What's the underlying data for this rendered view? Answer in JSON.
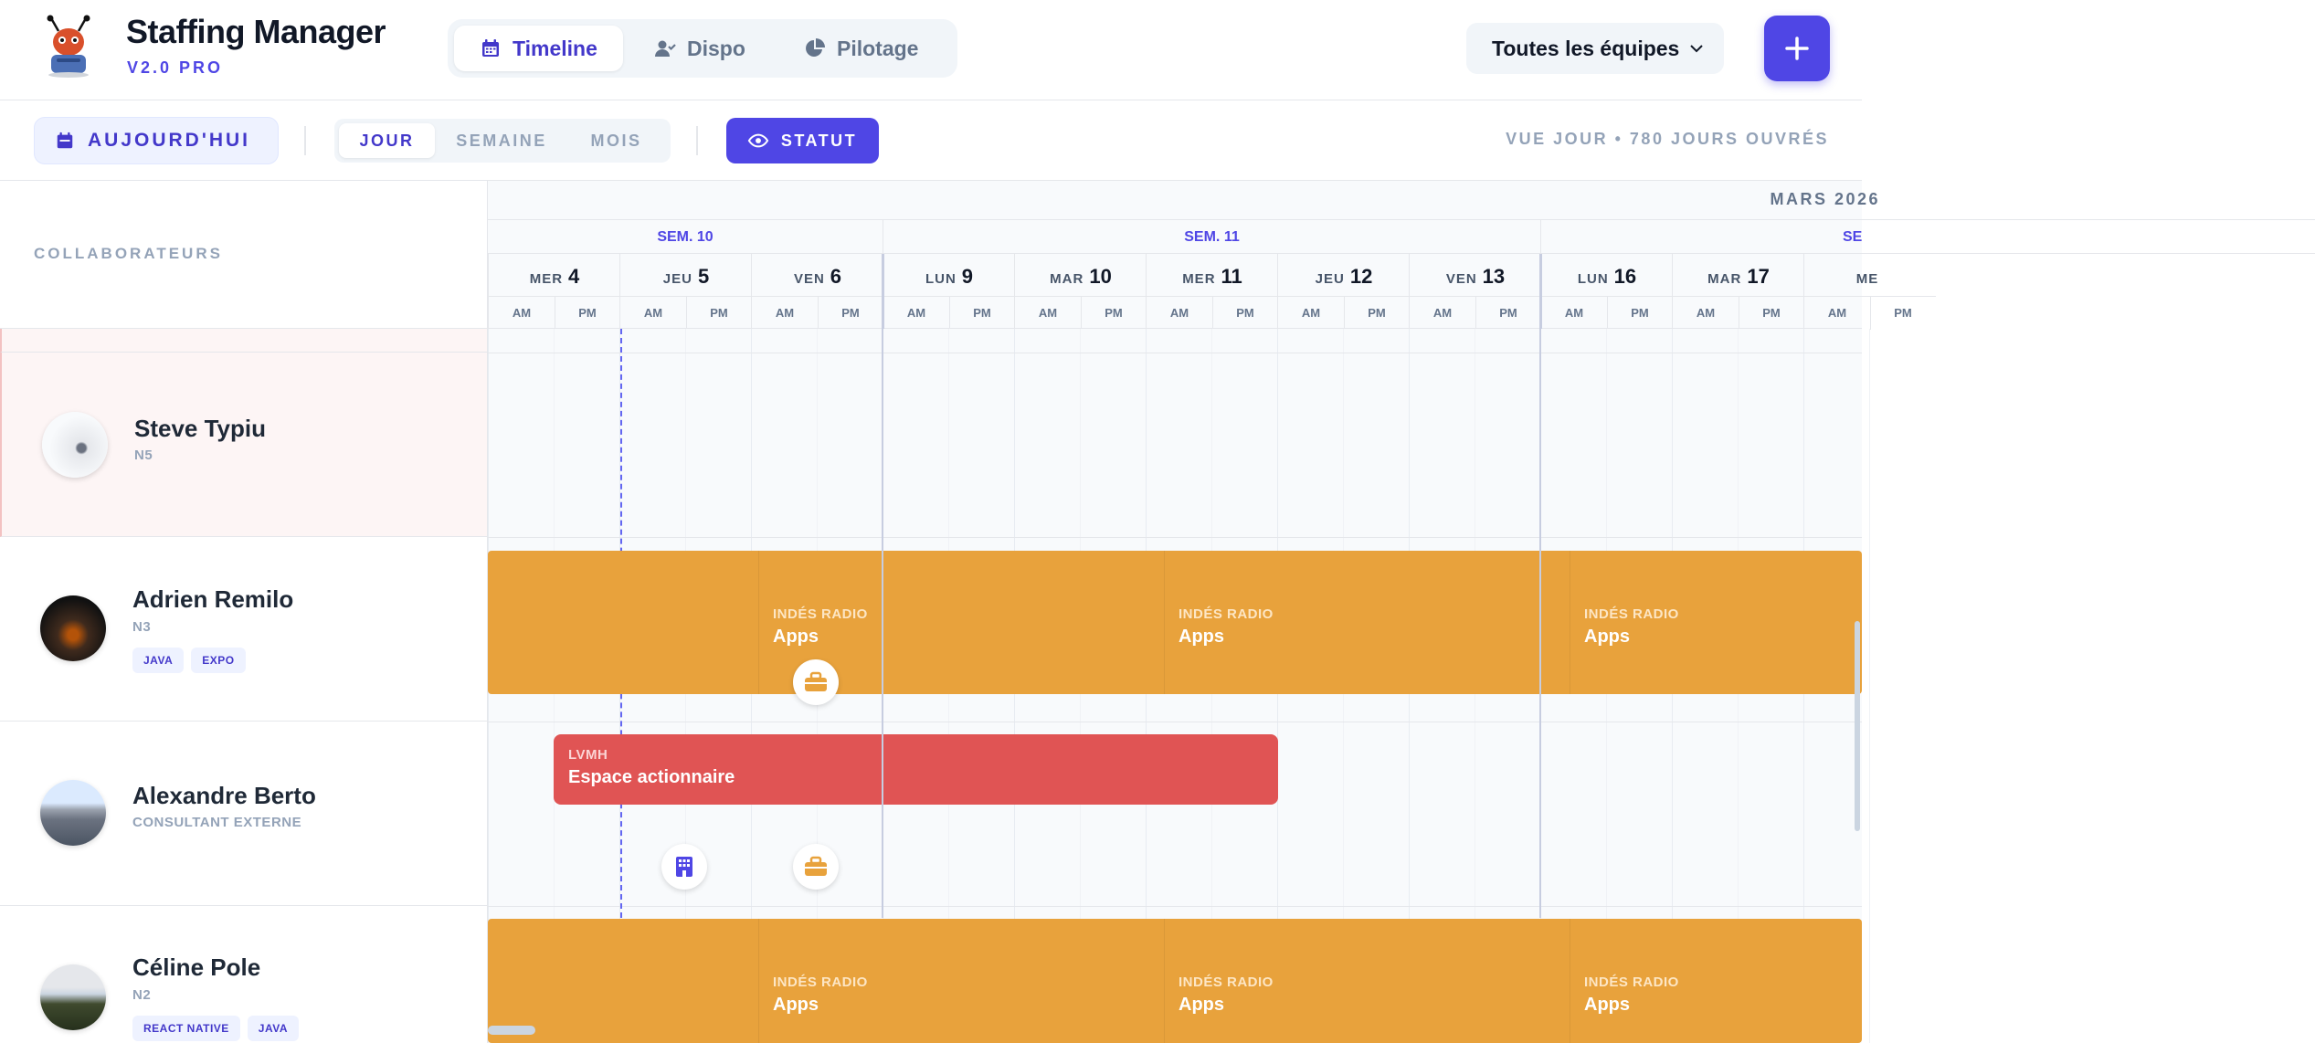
{
  "app": {
    "name": "Staffing Manager",
    "version": "V2.0 PRO"
  },
  "nav": {
    "tabs": [
      {
        "label": "Timeline",
        "active": true
      },
      {
        "label": "Dispo"
      },
      {
        "label": "Pilotage"
      }
    ]
  },
  "team_filter": {
    "selected": "Toutes les équipes"
  },
  "toolbar": {
    "today_label": "AUJOURD'HUI",
    "periods": [
      {
        "label": "JOUR",
        "active": true
      },
      {
        "label": "SEMAINE"
      },
      {
        "label": "MOIS"
      }
    ],
    "status_label": "STATUT",
    "view_info": "VUE JOUR • 780 JOURS OUVRÉS"
  },
  "left_header": "COLLABORATEURS",
  "calendar": {
    "month": "MARS 2026",
    "weeks": [
      {
        "label": "SEM. 10"
      },
      {
        "label": "SEM. 11"
      },
      {
        "label": "SE"
      }
    ],
    "days": [
      {
        "dow": "MER",
        "num": "4"
      },
      {
        "dow": "JEU",
        "num": "5"
      },
      {
        "dow": "VEN",
        "num": "6"
      },
      {
        "dow": "LUN",
        "num": "9"
      },
      {
        "dow": "MAR",
        "num": "10"
      },
      {
        "dow": "MER",
        "num": "11"
      },
      {
        "dow": "JEU",
        "num": "12"
      },
      {
        "dow": "VEN",
        "num": "13"
      },
      {
        "dow": "LUN",
        "num": "16"
      },
      {
        "dow": "MAR",
        "num": "17"
      },
      {
        "dow": "ME",
        "num": ""
      }
    ],
    "am": "AM",
    "pm": "PM"
  },
  "people": [
    {
      "name": "Steve Typiu",
      "level": "N5",
      "tags": []
    },
    {
      "name": "Adrien Remilo",
      "level": "N3",
      "tags": [
        "JAVA",
        "EXPO"
      ]
    },
    {
      "name": "Alexandre Berto",
      "level": "CONSULTANT EXTERNE",
      "tags": []
    },
    {
      "name": "Céline Pole",
      "level": "N2",
      "tags": [
        "REACT NATIVE",
        "JAVA"
      ]
    }
  ],
  "events": {
    "adrien": [
      {
        "client": "INDÉS RADIO",
        "project": "Apps"
      },
      {
        "client": "INDÉS RADIO",
        "project": "Apps"
      },
      {
        "client": "INDÉS RADIO",
        "project": "Apps"
      }
    ],
    "alexandre": [
      {
        "client": "LVMH",
        "project": "Espace actionnaire"
      }
    ],
    "celine": [
      {
        "client": "INDÉS RADIO",
        "project": "Apps"
      },
      {
        "client": "INDÉS RADIO",
        "project": "Apps"
      },
      {
        "client": "INDÉS RADIO",
        "project": "Apps"
      }
    ]
  },
  "colors": {
    "accent": "#4f46e5",
    "mission": "#e8a23c",
    "prospect": "#e05454"
  },
  "icons": [
    "ant-logo-icon",
    "calendar-icon",
    "user-check-icon",
    "pie-chart-icon",
    "chevron-down-icon",
    "plus-icon",
    "eye-icon",
    "briefcase-icon",
    "building-icon"
  ]
}
